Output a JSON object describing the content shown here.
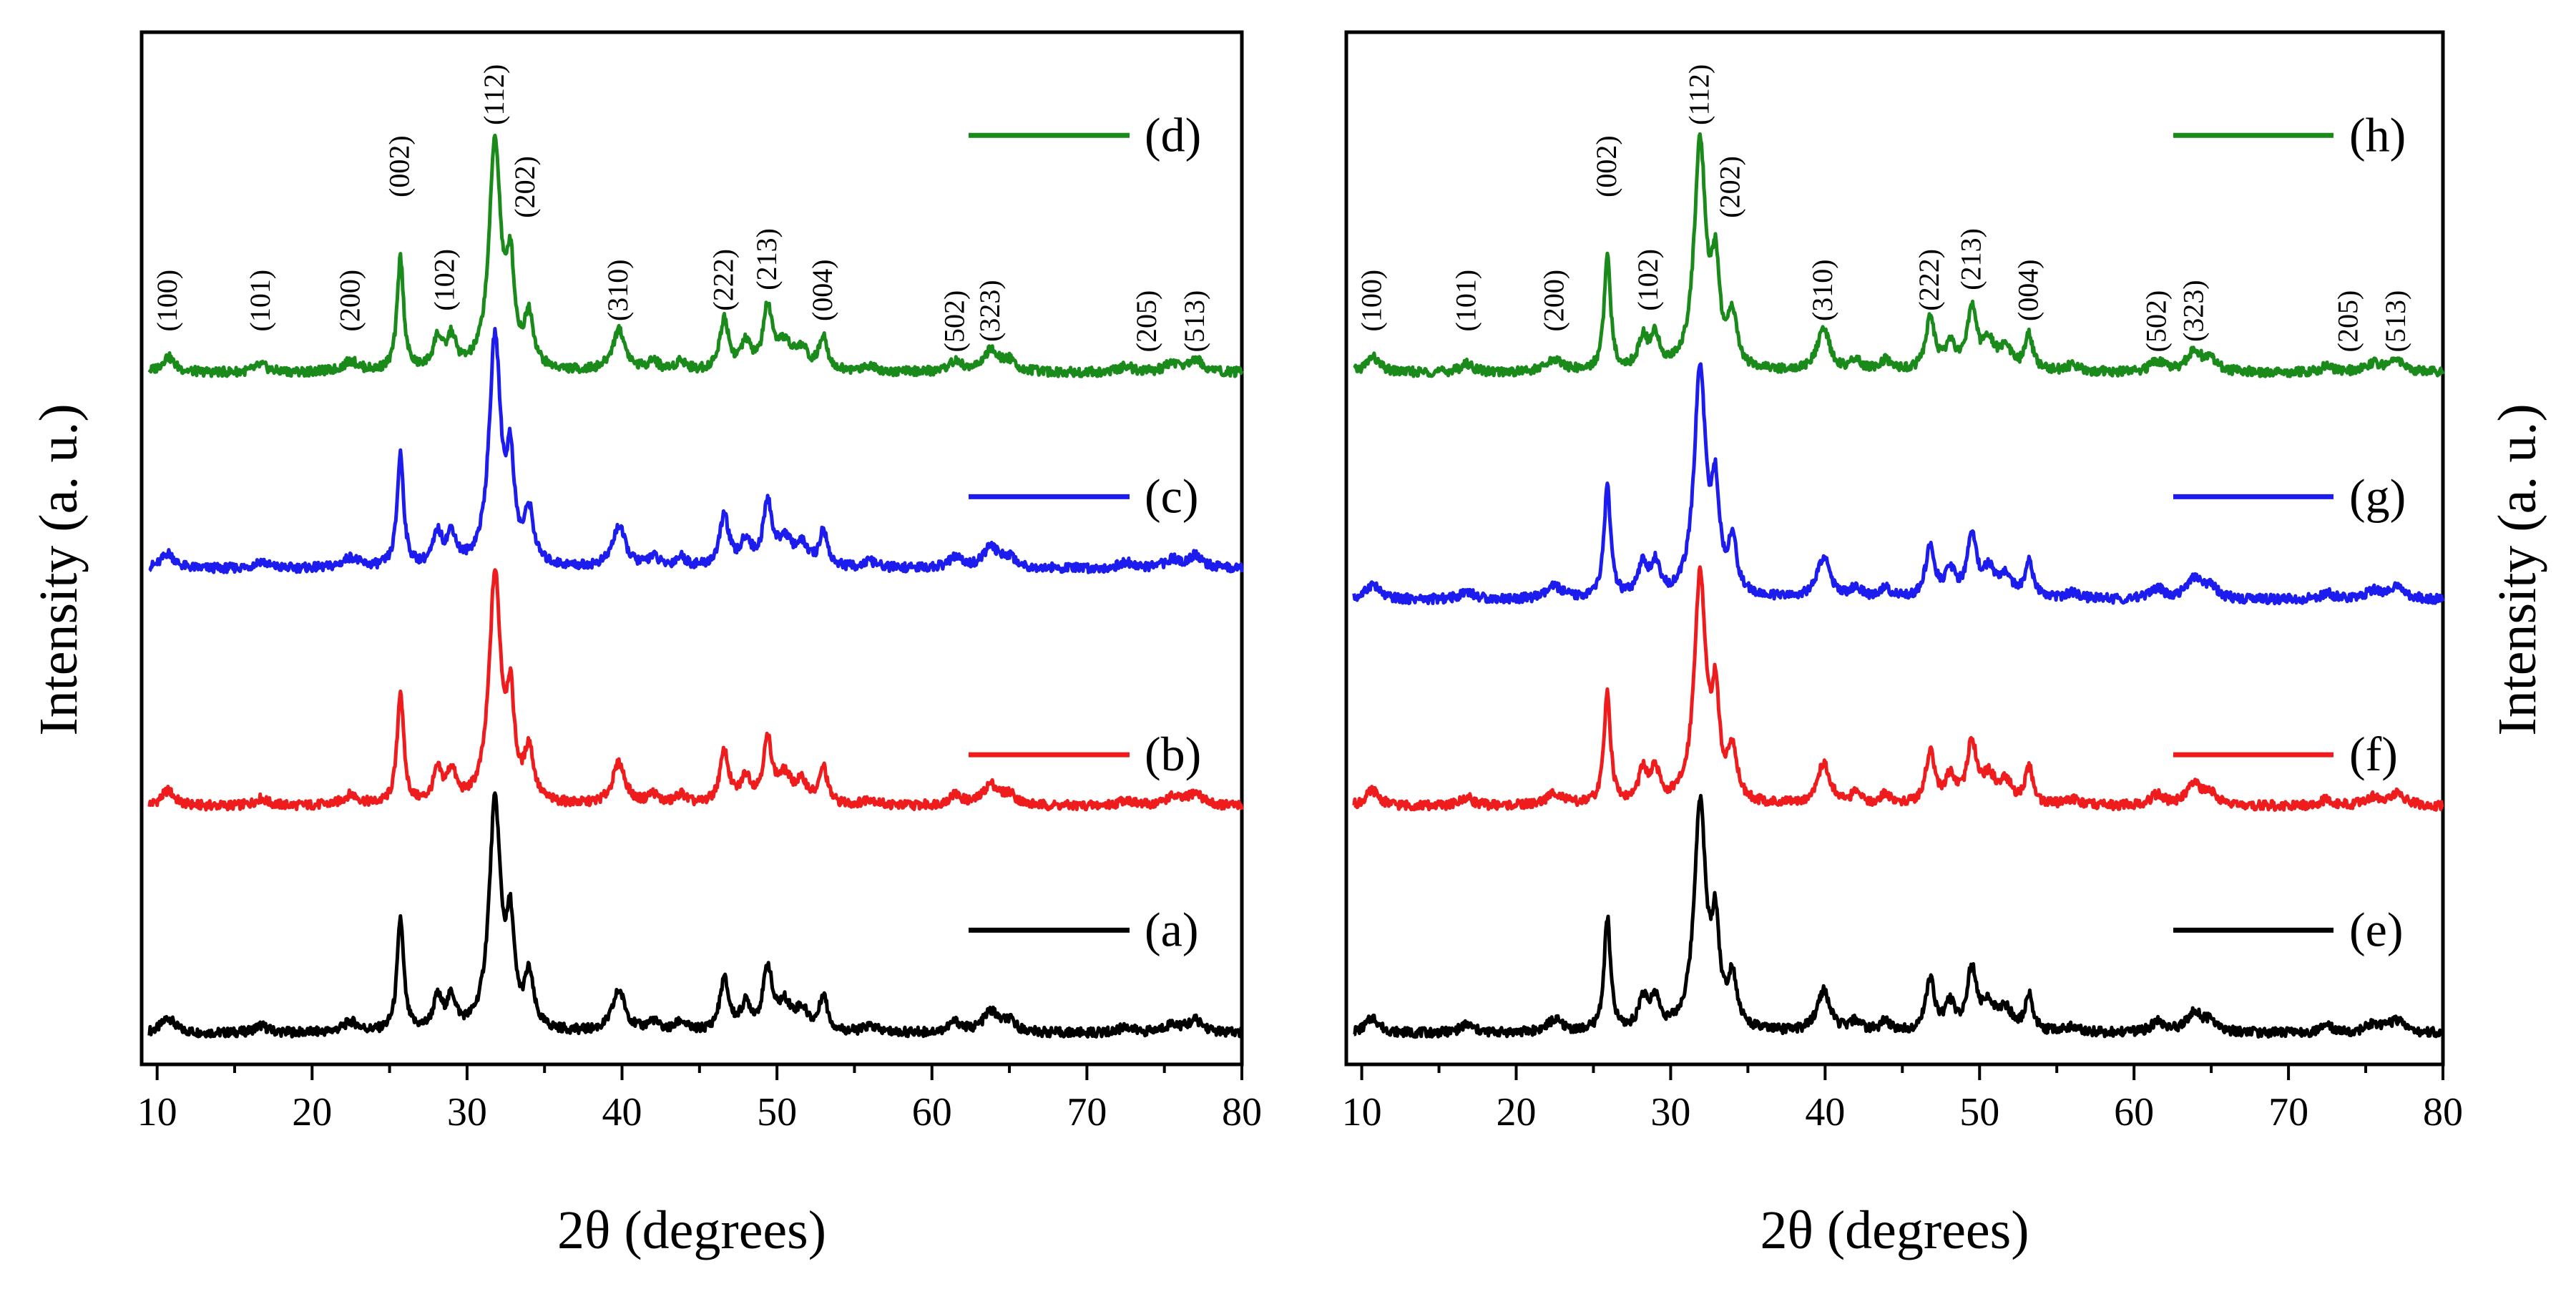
{
  "chart_data": [
    {
      "type": "line",
      "panel": "left",
      "xlabel": "2θ (degrees)",
      "ylabel": "Intensity (a. u.)",
      "xlim": [
        9,
        80
      ],
      "xticks": [
        10,
        20,
        30,
        40,
        50,
        60,
        70,
        80
      ],
      "ylim": [
        0,
        100
      ],
      "y_tick_labels": "none",
      "legend_position": "right-stacked",
      "series": [
        {
          "name": "(a)",
          "color": "#000000",
          "baseline": 3,
          "label_y": 13
        },
        {
          "name": "(b)",
          "color": "#ee1c1c",
          "baseline": 25,
          "label_y": 30
        },
        {
          "name": "(c)",
          "color": "#1c1cee",
          "baseline": 48,
          "label_y": 55
        },
        {
          "name": "(d)",
          "color": "#1a8a1a",
          "baseline": 67,
          "label_y": 90
        }
      ],
      "peaks": [
        {
          "x": 10.7,
          "h": 1.5,
          "w": 0.5
        },
        {
          "x": 16.7,
          "h": 0.7,
          "w": 0.5
        },
        {
          "x": 22.5,
          "h": 1.0,
          "w": 0.6
        },
        {
          "x": 25.7,
          "h": 11,
          "w": 0.25
        },
        {
          "x": 28.1,
          "h": 3,
          "w": 0.35
        },
        {
          "x": 29.0,
          "h": 3,
          "w": 0.35
        },
        {
          "x": 31.8,
          "h": 22,
          "w": 0.45
        },
        {
          "x": 32.8,
          "h": 9,
          "w": 0.3
        },
        {
          "x": 34.0,
          "h": 5,
          "w": 0.35
        },
        {
          "x": 39.8,
          "h": 4,
          "w": 0.5
        },
        {
          "x": 42.0,
          "h": 1.0,
          "w": 0.4
        },
        {
          "x": 43.8,
          "h": 1.0,
          "w": 0.4
        },
        {
          "x": 46.6,
          "h": 5,
          "w": 0.35
        },
        {
          "x": 48.0,
          "h": 2.5,
          "w": 0.4
        },
        {
          "x": 49.4,
          "h": 6,
          "w": 0.35
        },
        {
          "x": 50.5,
          "h": 2.5,
          "w": 0.5
        },
        {
          "x": 51.6,
          "h": 2.0,
          "w": 0.5
        },
        {
          "x": 53.0,
          "h": 3.5,
          "w": 0.3
        },
        {
          "x": 56.0,
          "h": 0.6,
          "w": 0.5
        },
        {
          "x": 61.5,
          "h": 1.0,
          "w": 0.5
        },
        {
          "x": 63.8,
          "h": 2.0,
          "w": 0.6
        },
        {
          "x": 65.0,
          "h": 1.0,
          "w": 0.5
        },
        {
          "x": 72.5,
          "h": 0.6,
          "w": 0.5
        },
        {
          "x": 75.5,
          "h": 0.8,
          "w": 0.6
        },
        {
          "x": 77.0,
          "h": 1.2,
          "w": 0.6
        }
      ],
      "hkl_labels": [
        {
          "text": "(100)",
          "x": 10.7,
          "y": 71
        },
        {
          "text": "(101)",
          "x": 16.7,
          "y": 71
        },
        {
          "text": "(200)",
          "x": 22.5,
          "y": 71
        },
        {
          "text": "(002)",
          "x": 25.7,
          "y": 84
        },
        {
          "text": "(102)",
          "x": 28.6,
          "y": 73
        },
        {
          "text": "(112)",
          "x": 31.8,
          "y": 91
        },
        {
          "text": "(202)",
          "x": 33.8,
          "y": 82
        },
        {
          "text": "(310)",
          "x": 39.8,
          "y": 72
        },
        {
          "text": "(222)",
          "x": 46.6,
          "y": 73
        },
        {
          "text": "(213)",
          "x": 49.4,
          "y": 75
        },
        {
          "text": "(004)",
          "x": 53.0,
          "y": 72
        },
        {
          "text": "(502)",
          "x": 61.5,
          "y": 69
        },
        {
          "text": "(323)",
          "x": 63.8,
          "y": 70
        },
        {
          "text": "(205)",
          "x": 73.9,
          "y": 69
        },
        {
          "text": "(513)",
          "x": 77.0,
          "y": 69
        }
      ]
    },
    {
      "type": "line",
      "panel": "right",
      "xlabel": "2θ (degrees)",
      "ylabel": "Intensity (a. u.)",
      "xlim": [
        9,
        80
      ],
      "xticks": [
        10,
        20,
        30,
        40,
        50,
        60,
        70,
        80
      ],
      "ylim": [
        0,
        100
      ],
      "y_tick_labels": "none",
      "legend_position": "right-stacked",
      "series": [
        {
          "name": "(e)",
          "color": "#000000",
          "baseline": 3,
          "label_y": 13
        },
        {
          "name": "(f)",
          "color": "#ee1c1c",
          "baseline": 25,
          "label_y": 30
        },
        {
          "name": "(g)",
          "color": "#1c1cee",
          "baseline": 45,
          "label_y": 55
        },
        {
          "name": "(h)",
          "color": "#1a8a1a",
          "baseline": 67,
          "label_y": 90
        }
      ],
      "peaks": [
        {
          "x": 10.7,
          "h": 1.5,
          "w": 0.5
        },
        {
          "x": 16.8,
          "h": 0.8,
          "w": 0.5
        },
        {
          "x": 22.5,
          "h": 1.2,
          "w": 0.6
        },
        {
          "x": 25.9,
          "h": 11,
          "w": 0.25
        },
        {
          "x": 28.2,
          "h": 3,
          "w": 0.35
        },
        {
          "x": 29.0,
          "h": 3,
          "w": 0.35
        },
        {
          "x": 31.9,
          "h": 22,
          "w": 0.45
        },
        {
          "x": 32.9,
          "h": 9,
          "w": 0.3
        },
        {
          "x": 34.0,
          "h": 5,
          "w": 0.35
        },
        {
          "x": 39.9,
          "h": 4,
          "w": 0.5
        },
        {
          "x": 42.0,
          "h": 1.0,
          "w": 0.4
        },
        {
          "x": 43.9,
          "h": 1.0,
          "w": 0.4
        },
        {
          "x": 46.8,
          "h": 5,
          "w": 0.35
        },
        {
          "x": 48.1,
          "h": 2.5,
          "w": 0.4
        },
        {
          "x": 49.5,
          "h": 6,
          "w": 0.35
        },
        {
          "x": 50.6,
          "h": 2.5,
          "w": 0.5
        },
        {
          "x": 51.7,
          "h": 2.0,
          "w": 0.5
        },
        {
          "x": 53.2,
          "h": 3.5,
          "w": 0.3
        },
        {
          "x": 56.0,
          "h": 0.6,
          "w": 0.5
        },
        {
          "x": 61.5,
          "h": 1.0,
          "w": 0.5
        },
        {
          "x": 63.9,
          "h": 2.0,
          "w": 0.6
        },
        {
          "x": 65.0,
          "h": 1.0,
          "w": 0.5
        },
        {
          "x": 72.5,
          "h": 0.6,
          "w": 0.5
        },
        {
          "x": 75.5,
          "h": 0.8,
          "w": 0.6
        },
        {
          "x": 77.0,
          "h": 1.2,
          "w": 0.6
        }
      ],
      "hkl_labels": [
        {
          "text": "(100)",
          "x": 10.7,
          "y": 71
        },
        {
          "text": "(101)",
          "x": 16.8,
          "y": 71
        },
        {
          "text": "(200)",
          "x": 22.5,
          "y": 71
        },
        {
          "text": "(002)",
          "x": 25.9,
          "y": 84
        },
        {
          "text": "(102)",
          "x": 28.6,
          "y": 73
        },
        {
          "text": "(112)",
          "x": 31.9,
          "y": 91
        },
        {
          "text": "(202)",
          "x": 33.9,
          "y": 82
        },
        {
          "text": "(310)",
          "x": 39.9,
          "y": 72
        },
        {
          "text": "(222)",
          "x": 46.8,
          "y": 73
        },
        {
          "text": "(213)",
          "x": 49.5,
          "y": 75
        },
        {
          "text": "(004)",
          "x": 53.2,
          "y": 72
        },
        {
          "text": "(502)",
          "x": 61.5,
          "y": 69
        },
        {
          "text": "(323)",
          "x": 63.9,
          "y": 70
        },
        {
          "text": "(205)",
          "x": 73.9,
          "y": 69
        },
        {
          "text": "(513)",
          "x": 77.0,
          "y": 69
        }
      ]
    }
  ]
}
